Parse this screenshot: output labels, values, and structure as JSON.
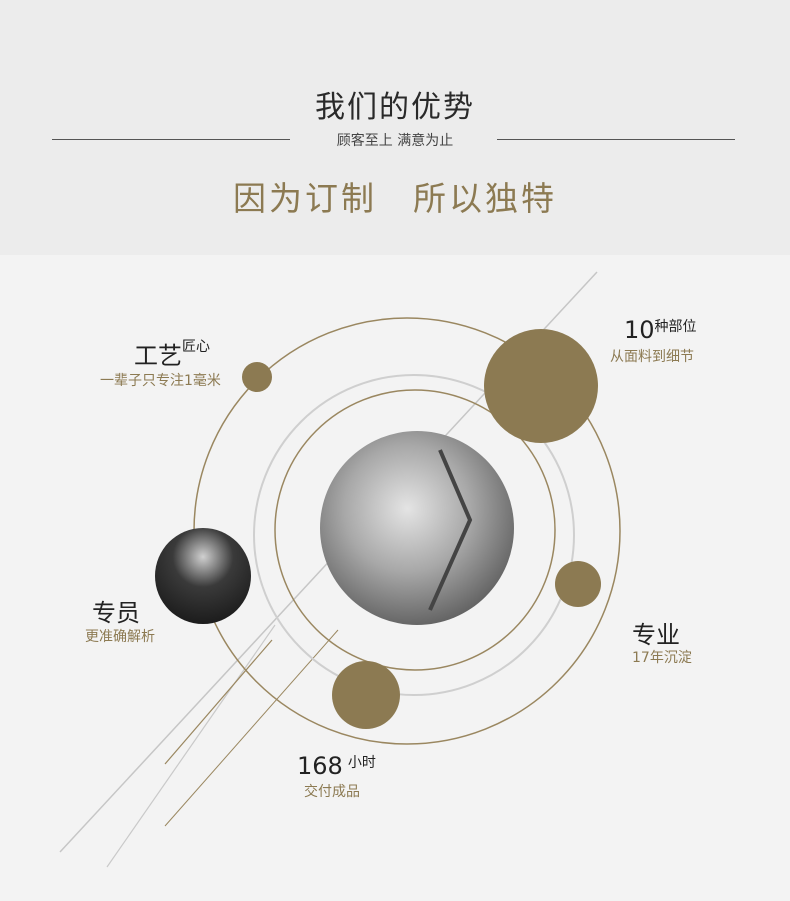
{
  "header": {
    "title": "我们的优势",
    "subtitle": "顾客至上 满意为止",
    "slogan_left": "因为订制",
    "slogan_right": "所以独特"
  },
  "features": {
    "craft": {
      "title": "工艺",
      "title_sup": "匠心",
      "desc": "一辈子只专注1毫米"
    },
    "parts": {
      "number": "10",
      "title_sup": "种部位",
      "desc": "从面料到细节"
    },
    "specialist": {
      "title": "专员",
      "desc": "更准确解析"
    },
    "professional": {
      "title": "专业",
      "desc": "17年沉淀"
    },
    "delivery": {
      "number": "168",
      "title_sup": "小时",
      "desc": "交付成品"
    }
  },
  "colors": {
    "gold": "#8c7a52",
    "ring_gray": "#c8c8c8",
    "background": "#f3f3f3",
    "header_bg": "#ececec"
  }
}
